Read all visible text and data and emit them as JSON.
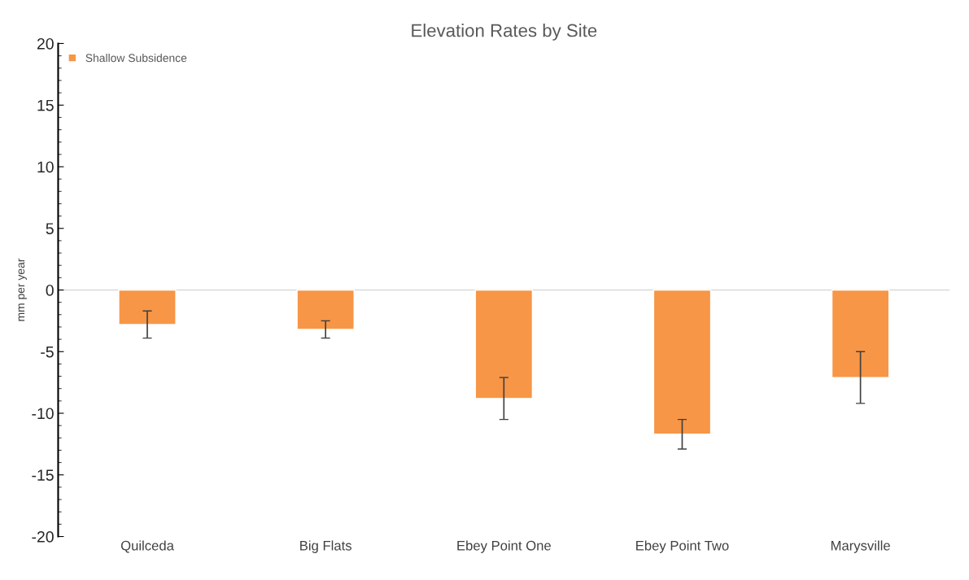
{
  "chart_data": {
    "type": "bar",
    "title": "Elevation Rates by Site",
    "ylabel": "mm per year",
    "categories": [
      "Quilceda",
      "Big Flats",
      "Ebey Point One",
      "Ebey Point Two",
      "Marysville"
    ],
    "series": [
      {
        "name": "Shallow Subsidence",
        "color": "#f79646",
        "values": [
          -2.8,
          -3.2,
          -8.8,
          -11.7,
          -7.1
        ],
        "errors": [
          1.1,
          0.7,
          1.7,
          1.2,
          2.1
        ]
      }
    ],
    "ylim": [
      -20,
      20
    ],
    "yticks": [
      -20,
      -15,
      -10,
      -5,
      0,
      5,
      10,
      15,
      20
    ],
    "grid": false,
    "ref_lines": [
      {
        "axis": "y",
        "value": 0,
        "color": "#d9d9d9"
      }
    ],
    "legend": "top left"
  }
}
